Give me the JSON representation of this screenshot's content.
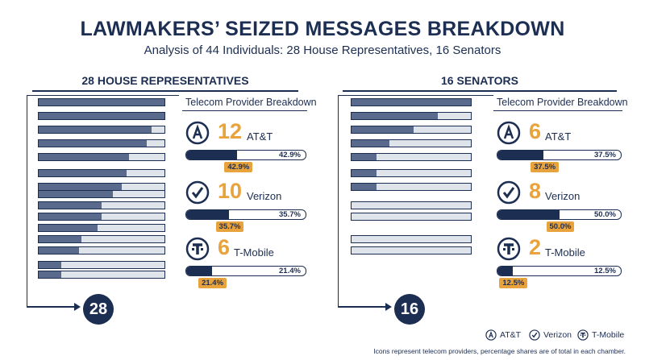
{
  "title": "LAWMAKERS’ SEIZED MESSAGES BREAKDOWN",
  "subtitle": "Analysis of 44 Individuals: 28 House Representatives, 16 Senators",
  "footnote": "Icons represent telecom providers, percentage shares are of total in each chamber.",
  "legend": [
    "AT&T",
    "Verizon",
    "T-Mobile"
  ],
  "colors": {
    "navy": "#1c2e52",
    "accent": "#e8a33d",
    "bar_fill": "#5a6a8c",
    "bar_bg": "#dfe3ea"
  },
  "chart_data": [
    {
      "type": "bar",
      "title": "28 HOUSE REPRESENTATIVES",
      "total": "28",
      "breakdown_title": "Telecom Provider Breakdown",
      "categories": [
        "AT&T",
        "Verizon",
        "T-Mobile"
      ],
      "counts": [
        12,
        10,
        6
      ],
      "percent_labels": [
        "42.9%",
        "35.7%",
        "21.4%"
      ],
      "values": [
        42.9,
        35.7,
        21.4
      ],
      "icons": [
        "att-icon",
        "verizon-icon",
        "tmobile-icon"
      ],
      "individual_bar_fills": [
        1.0,
        1.0,
        0.9,
        0.86,
        0.72,
        0.7,
        0.66,
        0.59,
        0.5,
        0.5,
        0.47,
        0.34,
        0.32,
        0.18,
        0.18
      ]
    },
    {
      "type": "bar",
      "title": "16 SENATORS",
      "total": "16",
      "breakdown_title": "Telecom Provider Breakdown",
      "categories": [
        "AT&T",
        "Verizon",
        "T-Mobile"
      ],
      "counts": [
        6,
        8,
        2
      ],
      "percent_labels": [
        "37.5%",
        "50.0%",
        "12.5%"
      ],
      "values": [
        37.5,
        50.0,
        12.5
      ],
      "icons": [
        "att-icon",
        "verizon-icon",
        "tmobile-icon"
      ],
      "individual_bar_fills": [
        1.0,
        0.72,
        0.52,
        0.32,
        0.21,
        0.21,
        0.21,
        0.0,
        0.0,
        0.0,
        0.0
      ]
    }
  ]
}
